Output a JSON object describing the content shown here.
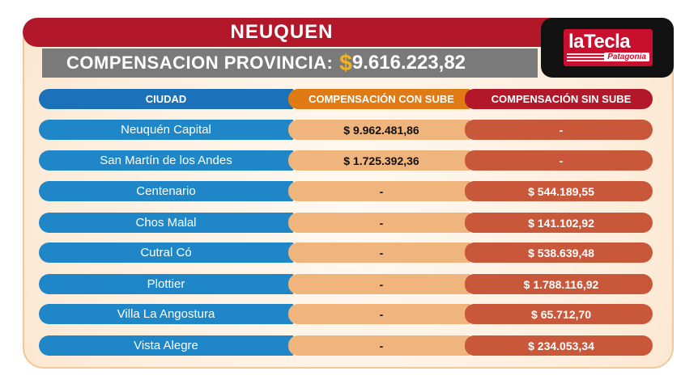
{
  "header": {
    "province": "NEUQUEN",
    "compensation_label": "COMPENSACION PROVINCIA:",
    "currency_symbol": "$",
    "compensation_amount": "9.616.223,82"
  },
  "logo": {
    "name": "laTecla",
    "subtitle": "Patagonia"
  },
  "table": {
    "columns": [
      "CIUDAD",
      "COMPENSACIÓN CON SUBE",
      "COMPENSACIÓN SIN SUBE"
    ],
    "rows": [
      {
        "city": "Neuquén Capital",
        "con_sube": "$ 9.962.481,86",
        "sin_sube": "-"
      },
      {
        "city": "San Martín de los Andes",
        "con_sube": "$ 1.725.392,36",
        "sin_sube": "-"
      },
      {
        "city": "Centenario",
        "con_sube": "-",
        "sin_sube": "$ 544.189,55"
      },
      {
        "city": "Chos Malal",
        "con_sube": "-",
        "sin_sube": "$ 141.102,92"
      },
      {
        "city": "Cutral Có",
        "con_sube": "-",
        "sin_sube": "$ 538.639,48"
      },
      {
        "city": "Plottier",
        "con_sube": "-",
        "sin_sube": "$ 1.788.116,92"
      },
      {
        "city": "Villa La Angostura",
        "con_sube": "-",
        "sin_sube": "$ 65.712,70"
      },
      {
        "city": "Vista Alegre",
        "con_sube": "-",
        "sin_sube": "$ 234.053,34"
      }
    ]
  },
  "colors": {
    "blue": "#1f86c8",
    "orange": "#e07a14",
    "red": "#b3182a",
    "gold": "#f6b21b"
  }
}
